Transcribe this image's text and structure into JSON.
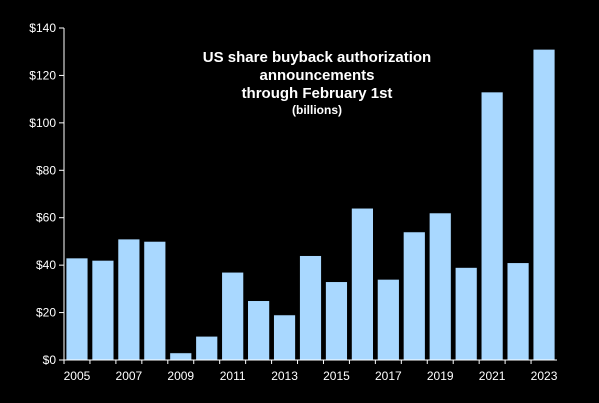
{
  "chart_data": {
    "type": "bar",
    "title": [
      "US share buyback authorization",
      "announcements",
      "through February 1st"
    ],
    "subtitle": "(billions)",
    "categories": [
      2005,
      2006,
      2007,
      2008,
      2009,
      2010,
      2011,
      2012,
      2013,
      2014,
      2015,
      2016,
      2017,
      2018,
      2019,
      2020,
      2021,
      2022,
      2023
    ],
    "x_tick_labels": [
      "2005",
      "2007",
      "2009",
      "2011",
      "2013",
      "2015",
      "2017",
      "2019",
      "2021",
      "2023"
    ],
    "values": [
      43,
      42,
      51,
      50,
      3,
      10,
      37,
      25,
      19,
      44,
      33,
      64,
      34,
      54,
      62,
      39,
      113,
      41,
      131
    ],
    "ylim": [
      0,
      140
    ],
    "y_ticks": [
      0,
      20,
      40,
      60,
      80,
      100,
      120,
      140
    ],
    "y_tick_labels": [
      "$0",
      "$20",
      "$40",
      "$60",
      "$80",
      "$100",
      "$120",
      "$140"
    ],
    "xlabel": "",
    "ylabel": "",
    "grid": false,
    "colors": {
      "background": "#000000",
      "bar": "#a9d8ff",
      "bar_stroke": "#000000",
      "axis": "#ffffff",
      "text": "#ffffff"
    }
  }
}
